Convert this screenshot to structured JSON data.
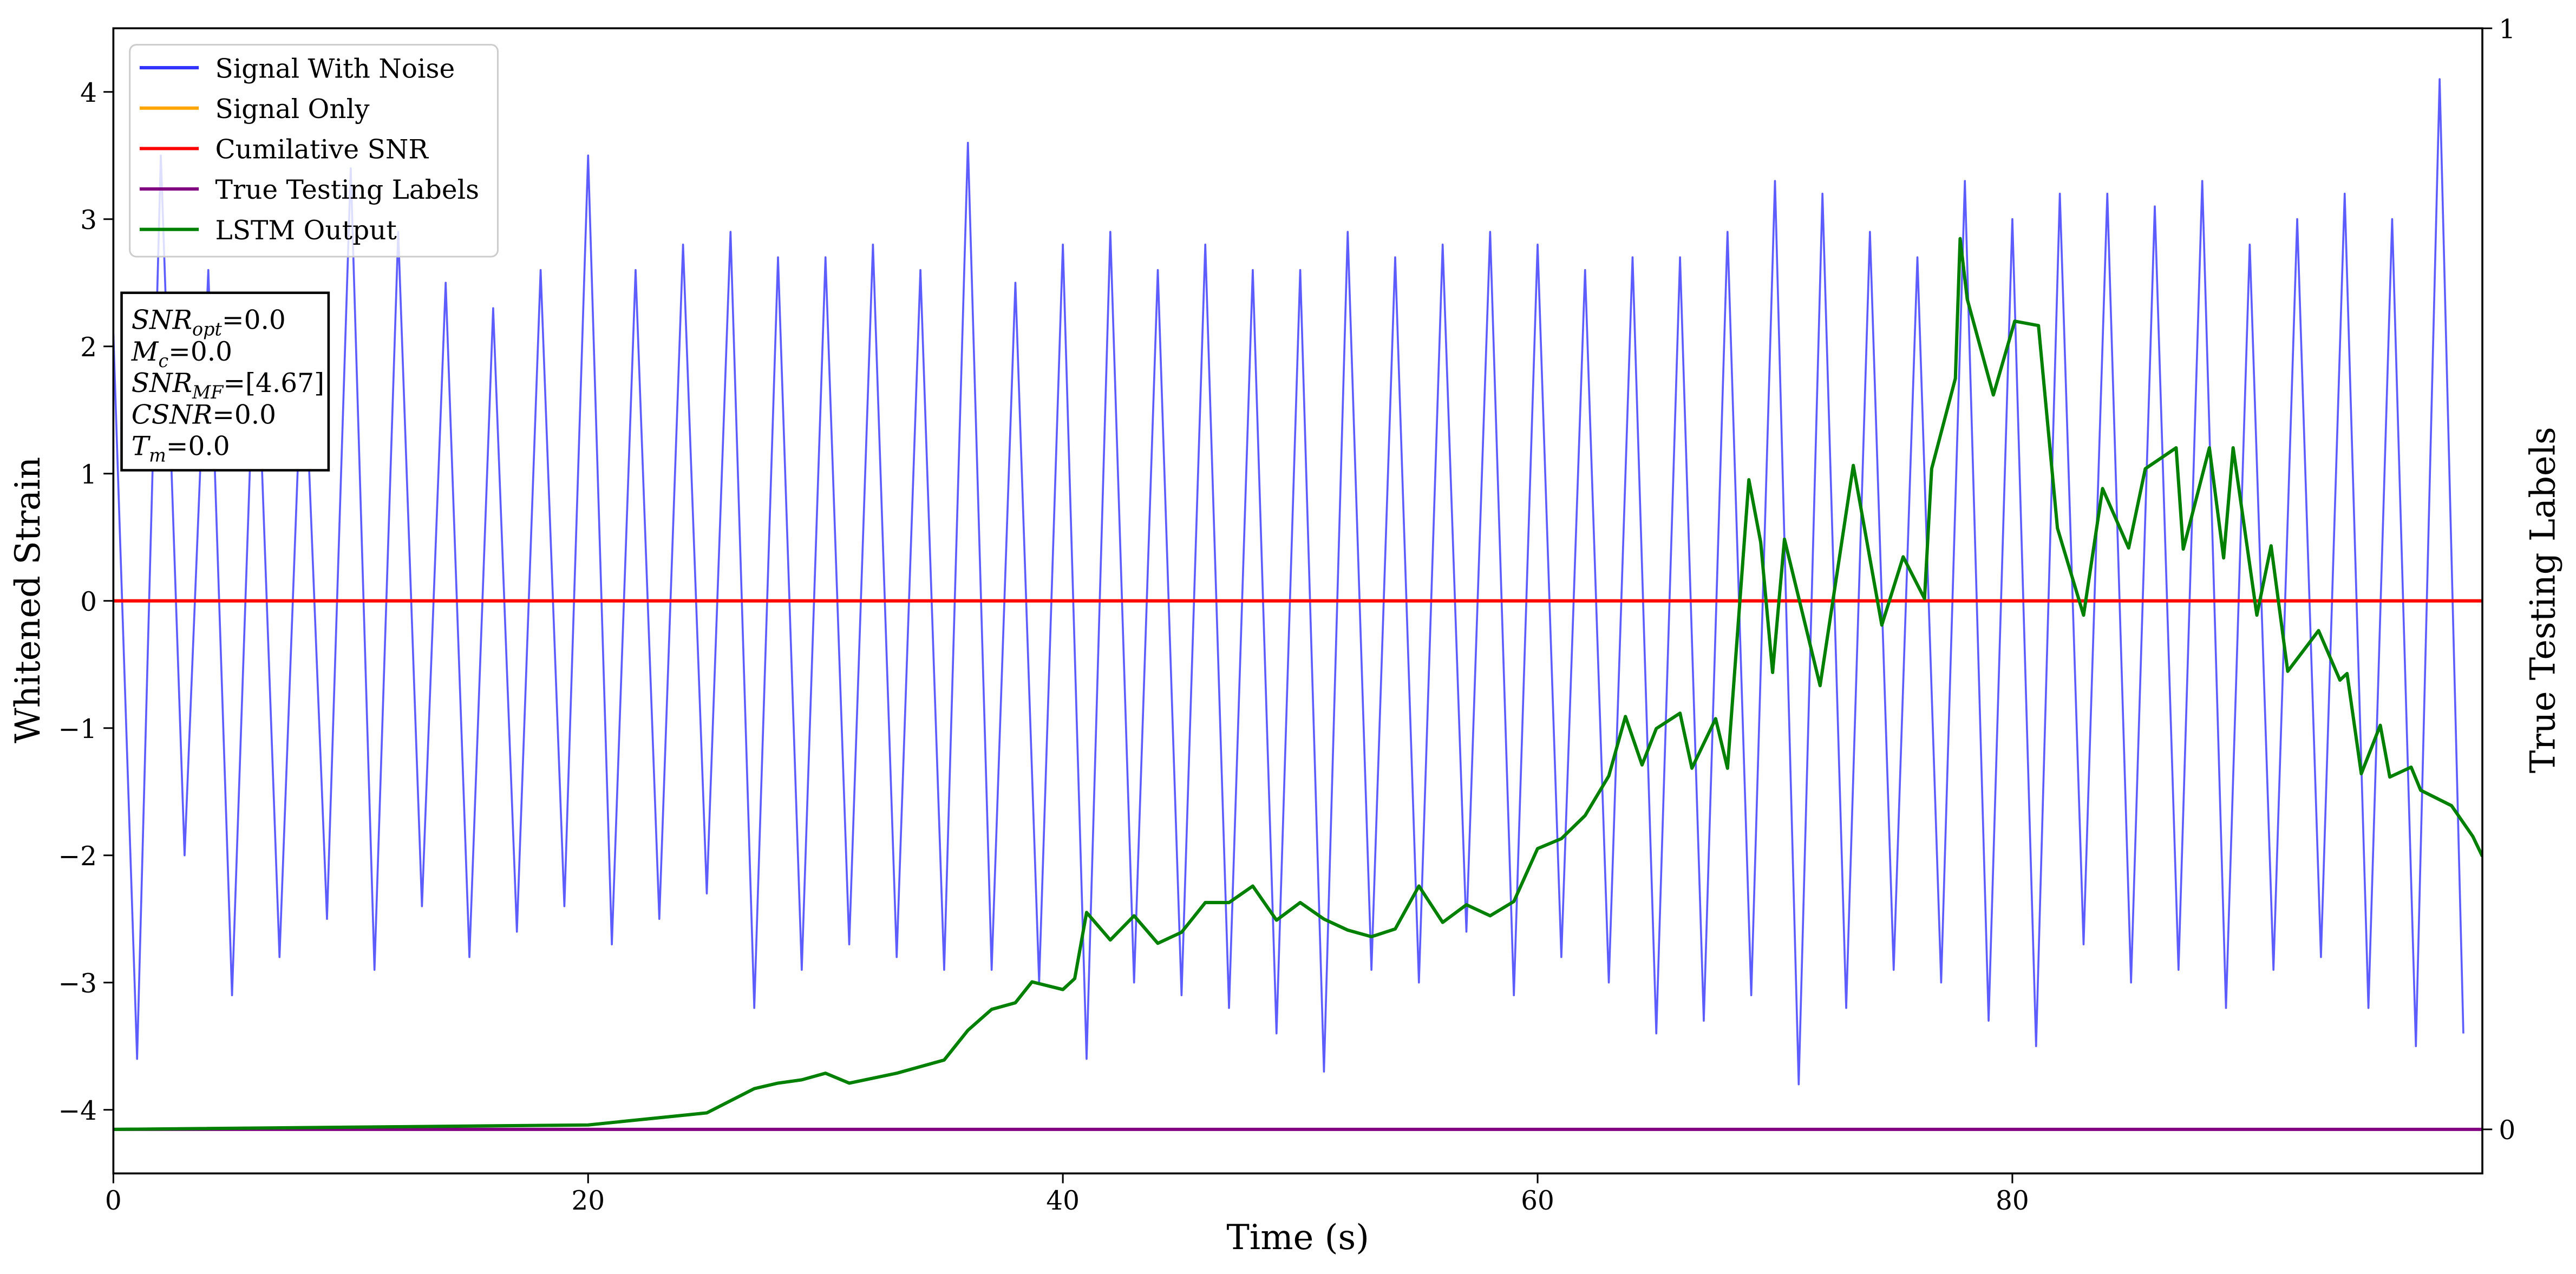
{
  "chart_data": {
    "type": "line",
    "xlabel": "Time (s)",
    "ylabel": "Whitened Strain",
    "y2label": "True Testing Labels",
    "xlim": [
      0,
      99.8
    ],
    "ylim": [
      -4.5,
      4.5
    ],
    "y2lim": [
      -0.04,
      1
    ],
    "xticks": [
      0,
      20,
      40,
      60,
      80
    ],
    "yticks": [
      {
        "value": -4,
        "label": "−4"
      },
      {
        "value": -3,
        "label": "−3"
      },
      {
        "value": -2,
        "label": "−2"
      },
      {
        "value": -1,
        "label": "−1"
      },
      0,
      1,
      2,
      3,
      4
    ],
    "y2ticks": [
      0,
      1
    ],
    "grid": false,
    "legend": "upper left",
    "annotation": [
      {
        "main": "SNR",
        "sub": "opt",
        "text": "=0.0"
      },
      {
        "main": "M",
        "sub": "c",
        "text": "=0.0"
      },
      {
        "main": "SNR",
        "sub": "MF",
        "text": "=[4.67]"
      },
      {
        "main": "CSNR",
        "text": "=0.0"
      },
      {
        "main": "T",
        "sub": "m",
        "text": "=0.0"
      }
    ],
    "series": [
      {
        "name": "Signal With Noise",
        "color": "#3333ff",
        "x": [
          0,
          1,
          2,
          3,
          4,
          5,
          6,
          7,
          8,
          9,
          10,
          11,
          12,
          13,
          14,
          15,
          16,
          17,
          18,
          19,
          20,
          21,
          22,
          23,
          24,
          25,
          26,
          27,
          28,
          29,
          30,
          31,
          32,
          33,
          34,
          35,
          36,
          37,
          38,
          39,
          40,
          41,
          42,
          43,
          44,
          45,
          46,
          47,
          48,
          49,
          50,
          51,
          52,
          53,
          54,
          55,
          56,
          57,
          58,
          59,
          60,
          61,
          62,
          63,
          64,
          65,
          66,
          67,
          68,
          69,
          70,
          71,
          72,
          73,
          74,
          75,
          76,
          77,
          78,
          79,
          80,
          81,
          82,
          83,
          84,
          85,
          86,
          87,
          88,
          89,
          90,
          91,
          92,
          93,
          94,
          95,
          96,
          97,
          98,
          99
        ],
        "values": [
          2.1,
          -3.6,
          3.5,
          -2.0,
          2.6,
          -3.1,
          2.4,
          -2.8,
          2.2,
          -2.5,
          3.4,
          -2.9,
          2.9,
          -2.4,
          2.5,
          -2.8,
          2.3,
          -2.6,
          2.6,
          -2.4,
          3.5,
          -2.7,
          2.6,
          -2.5,
          2.8,
          -2.3,
          2.9,
          -3.2,
          2.7,
          -2.9,
          2.7,
          -2.7,
          2.8,
          -2.8,
          2.6,
          -2.9,
          3.6,
          -2.9,
          2.5,
          -3.0,
          2.8,
          -3.6,
          2.9,
          -3.0,
          2.6,
          -3.1,
          2.8,
          -3.2,
          2.6,
          -3.4,
          2.6,
          -3.7,
          2.9,
          -2.9,
          2.7,
          -3.0,
          2.8,
          -2.6,
          2.9,
          -3.1,
          2.8,
          -2.8,
          2.6,
          -3.0,
          2.7,
          -3.4,
          2.7,
          -3.3,
          2.9,
          -3.1,
          3.3,
          -3.8,
          3.2,
          -3.2,
          2.9,
          -2.9,
          2.7,
          -3.0,
          3.3,
          -3.3,
          3.0,
          -3.5,
          3.2,
          -2.7,
          3.2,
          -3.0,
          3.1,
          -2.9,
          3.3,
          -3.2,
          2.8,
          -2.9,
          3.0,
          -2.8,
          3.2,
          -3.2,
          3.0,
          -3.5,
          4.1,
          -3.4
        ]
      },
      {
        "name": "Signal Only",
        "color": "#ffa500",
        "x": [
          0,
          99.8
        ],
        "values": [
          0,
          0
        ]
      },
      {
        "name": "Cumilative SNR",
        "color": "#ff0000",
        "x": [
          0,
          99.8
        ],
        "values": [
          0,
          0
        ]
      },
      {
        "name": "True Testing Labels",
        "color": "#800080",
        "axis": "y2",
        "x": [
          0,
          99.8
        ],
        "values": [
          0,
          0
        ]
      },
      {
        "name": "LSTM Output",
        "color": "#008000",
        "axis": "y2",
        "x": [
          0,
          20,
          25,
          27,
          28,
          29,
          30,
          31,
          33,
          35,
          36,
          37,
          38,
          38.7,
          40,
          40.5,
          41,
          42,
          43,
          44,
          45,
          46,
          47,
          48,
          49,
          50,
          51,
          52,
          53,
          54,
          55,
          56,
          57,
          58,
          59,
          60,
          61,
          62,
          63,
          63.7,
          64.4,
          65,
          66,
          66.5,
          67.5,
          68,
          68.9,
          69.4,
          69.9,
          70.4,
          71.9,
          73.3,
          74.5,
          75.4,
          76.3,
          76.6,
          77.6,
          77.8,
          78.1,
          79.2,
          80.1,
          81.1,
          81.9,
          83.0,
          83.8,
          84.9,
          85.6,
          86.9,
          87.2,
          88.3,
          88.9,
          89.3,
          90.3,
          90.9,
          91.6,
          92.9,
          93.8,
          94.1,
          94.7,
          95.5,
          95.9,
          96.8,
          97.2,
          98.5,
          99.4,
          99.8
        ],
        "values": [
          0,
          0.004,
          0.015,
          0.037,
          0.042,
          0.045,
          0.051,
          0.042,
          0.051,
          0.063,
          0.09,
          0.109,
          0.115,
          0.134,
          0.127,
          0.137,
          0.197,
          0.172,
          0.194,
          0.169,
          0.179,
          0.206,
          0.206,
          0.221,
          0.19,
          0.206,
          0.191,
          0.181,
          0.175,
          0.182,
          0.221,
          0.188,
          0.204,
          0.194,
          0.207,
          0.255,
          0.264,
          0.285,
          0.321,
          0.375,
          0.331,
          0.364,
          0.378,
          0.328,
          0.373,
          0.328,
          0.59,
          0.533,
          0.415,
          0.536,
          0.403,
          0.603,
          0.458,
          0.52,
          0.482,
          0.6,
          0.682,
          0.809,
          0.754,
          0.667,
          0.734,
          0.73,
          0.546,
          0.467,
          0.582,
          0.528,
          0.6,
          0.619,
          0.527,
          0.619,
          0.519,
          0.619,
          0.467,
          0.53,
          0.416,
          0.453,
          0.408,
          0.414,
          0.323,
          0.367,
          0.32,
          0.329,
          0.308,
          0.294,
          0.266,
          0.248
        ]
      }
    ]
  }
}
